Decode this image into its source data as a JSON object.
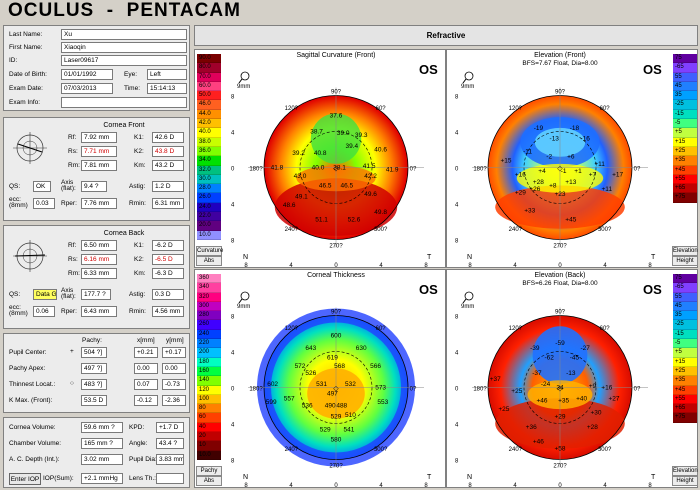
{
  "app": {
    "title": "OCULUS  -  PENTACAM",
    "section": "Refractive"
  },
  "patient": [
    {
      "label": "Last Name:",
      "value": "Xu"
    },
    {
      "label": "First Name:",
      "value": "Xiaoqin"
    },
    {
      "label": "ID:",
      "value": "Laser09617"
    }
  ],
  "dob": {
    "label": "Date of Birth:",
    "value": "01/01/1992",
    "eye_label": "Eye:",
    "eye": "Left"
  },
  "exam": {
    "label": "Exam Date:",
    "value": "07/03/2013",
    "time_label": "Time:",
    "time": "15:14:13"
  },
  "exam_info": {
    "label": "Exam Info:",
    "value": ""
  },
  "front": {
    "title": "Cornea Front",
    "rows": [
      {
        "l1": "Rf:",
        "v1": "7.92 mm",
        "l2": "K1:",
        "v2": "42.6 D"
      },
      {
        "l1": "Rs:",
        "v1": "7.71 mm",
        "l2": "K2:",
        "v2": "43.8 D"
      },
      {
        "l1": "Rm:",
        "v1": "7.81 mm",
        "l2": "Km:",
        "v2": "43.2 D"
      }
    ],
    "qs_label": "QS:",
    "qs": "OK",
    "axis_label": "Axis (flat):",
    "axis": "9.4 ?",
    "astig_label": "Astig:",
    "astig": "1.2 D",
    "ecc_label": "ecc: (8mm)",
    "ecc": "0.03",
    "rper_label": "Rper:",
    "rper": "7.76 mm",
    "rmin_label": "Rmin:",
    "rmin": "6.31 mm"
  },
  "back": {
    "title": "Cornea Back",
    "rows": [
      {
        "l1": "Rf:",
        "v1": "6.50 mm",
        "l2": "K1:",
        "v2": "-6.2 D"
      },
      {
        "l1": "Rs:",
        "v1": "6.16 mm",
        "l2": "K2:",
        "v2": "-6.5 D"
      },
      {
        "l1": "Rm:",
        "v1": "6.33 mm",
        "l2": "Km:",
        "v2": "-6.3 D"
      }
    ],
    "qs_label": "QS:",
    "qs": "Data G",
    "axis_label": "Axis (flat):",
    "axis": "177.7 ?",
    "astig_label": "Astig:",
    "astig": "0.3 D",
    "ecc_label": "ecc: (8mm)",
    "ecc": "0.06",
    "rper_label": "Rper:",
    "rper": "6.43 mm",
    "rmin_label": "Rmin:",
    "rmin": "4.56 mm"
  },
  "pachy": {
    "h_pachy": "Pachy:",
    "h_x": "x[mm]",
    "h_y": "y[mm]",
    "rows": [
      {
        "label": "Pupil Center:",
        "sym": "+",
        "pachy": "504 ?]",
        "x": "+0.21",
        "y": "+0.17"
      },
      {
        "label": "Pachy Apex:",
        "sym": "",
        "pachy": "497 ?]",
        "x": "0.00",
        "y": "0.00"
      },
      {
        "label": "Thinnest Locat.:",
        "sym": "○",
        "pachy": "483 ?]",
        "x": "0.07",
        "y": "-0.73"
      },
      {
        "label": "K Max. (Front):",
        "sym": "",
        "pachy": "53.5 D",
        "x": "-0.12",
        "y": "-2.36"
      }
    ]
  },
  "chamber": {
    "rows": [
      {
        "l1": "Cornea Volume:",
        "v1": "59.6 mm ?",
        "l2": "KPD:",
        "v2": "+1.7 D"
      },
      {
        "l1": "Chamber Volume:",
        "v1": "165 mm ?",
        "l2": "Angle:",
        "v2": "43.4 ?"
      },
      {
        "l1": "A. C. Depth (Int.):",
        "v1": "3.02 mm",
        "l2": "Pupil Dia:",
        "v2": "3.83 mm"
      }
    ],
    "enter_iop": "Enter IOP",
    "iop_label": "IOP(Sum):",
    "iop": "+2.1 mmHg",
    "lens_label": "Lens Th.:",
    "lens": ""
  },
  "maps": {
    "sagittal": {
      "title": "Sagittal Curvature (Front)",
      "eye": "OS",
      "scale_top": "Curvature",
      "scale_bot": "Abs",
      "scale": [
        "90.0",
        "80.0",
        "70.0",
        "60.0",
        "50.0",
        "46.0",
        "44.0",
        "42.0",
        "40.0",
        "38.0",
        "36.0",
        "34.0",
        "32.0",
        "30.0",
        "28.0",
        "26.0",
        "24.0",
        "22.0",
        "20.0",
        "10.0"
      ],
      "values": [
        {
          "t": "37.6",
          "x": 0,
          "y": -0.72
        },
        {
          "t": "38.7",
          "x": -0.27,
          "y": -0.5
        },
        {
          "t": "39.0",
          "x": 0.1,
          "y": -0.48
        },
        {
          "t": "39.3",
          "x": 0.35,
          "y": -0.45
        },
        {
          "t": "40.6",
          "x": 0.62,
          "y": -0.25
        },
        {
          "t": "39.2",
          "x": -0.52,
          "y": -0.2
        },
        {
          "t": "40.8",
          "x": -0.22,
          "y": -0.2
        },
        {
          "t": "39.4",
          "x": 0.22,
          "y": -0.3
        },
        {
          "t": "41.8",
          "x": -0.82,
          "y": 0.0
        },
        {
          "t": "40.0",
          "x": -0.25,
          "y": 0.0
        },
        {
          "t": "38.1",
          "x": 0.05,
          "y": 0.0
        },
        {
          "t": "41.5",
          "x": 0.46,
          "y": -0.02
        },
        {
          "t": "41.9",
          "x": 0.78,
          "y": 0.03
        },
        {
          "t": "43.0",
          "x": -0.5,
          "y": 0.12
        },
        {
          "t": "42.2",
          "x": 0.48,
          "y": 0.12
        },
        {
          "t": "46.5",
          "x": -0.15,
          "y": 0.25
        },
        {
          "t": "46.5",
          "x": 0.15,
          "y": 0.25
        },
        {
          "t": "49.1",
          "x": -0.48,
          "y": 0.4
        },
        {
          "t": "49.6",
          "x": 0.48,
          "y": 0.37
        },
        {
          "t": "48.6",
          "x": -0.65,
          "y": 0.52
        },
        {
          "t": "51.1",
          "x": -0.2,
          "y": 0.72
        },
        {
          "t": "52.6",
          "x": 0.25,
          "y": 0.72
        },
        {
          "t": "49.8",
          "x": 0.62,
          "y": 0.62
        }
      ]
    },
    "elev_front": {
      "title": "Elevation (Front)",
      "subtitle": "BFS=7.67 Float, Dia=8.00",
      "eye": "OS",
      "scale_top": "Elevation",
      "scale_bot": "Height",
      "scale": [
        "75",
        "-65",
        "55",
        "45",
        "35",
        "-25",
        "-15",
        "-5",
        "+5",
        "+15",
        "+25",
        "+35",
        "+45",
        "+55",
        "+65",
        "+75"
      ],
      "values": [
        {
          "t": "-19",
          "x": -0.3,
          "y": -0.55
        },
        {
          "t": "-18",
          "x": 0.2,
          "y": -0.55
        },
        {
          "t": "-13",
          "x": -0.08,
          "y": -0.4
        },
        {
          "t": "-16",
          "x": 0.35,
          "y": -0.4
        },
        {
          "t": "-11",
          "x": -0.45,
          "y": -0.22
        },
        {
          "t": "-2",
          "x": -0.15,
          "y": -0.15
        },
        {
          "t": "+6",
          "x": 0.15,
          "y": -0.15
        },
        {
          "t": "+15",
          "x": -0.75,
          "y": -0.1
        },
        {
          "t": "+11",
          "x": 0.55,
          "y": -0.05
        },
        {
          "t": "+16",
          "x": -0.55,
          "y": 0.1
        },
        {
          "t": "+4",
          "x": -0.25,
          "y": 0.05
        },
        {
          "t": "-1",
          "x": 0.05,
          "y": 0.05
        },
        {
          "t": "+1",
          "x": 0.25,
          "y": 0.05
        },
        {
          "t": "+7",
          "x": 0.45,
          "y": 0.1
        },
        {
          "t": "+17",
          "x": 0.8,
          "y": 0.1
        },
        {
          "t": "+28",
          "x": -0.3,
          "y": 0.2
        },
        {
          "t": "+8",
          "x": -0.1,
          "y": 0.25
        },
        {
          "t": "+13",
          "x": 0.15,
          "y": 0.2
        },
        {
          "t": "+11",
          "x": 0.65,
          "y": 0.3
        },
        {
          "t": "+29",
          "x": -0.55,
          "y": 0.35
        },
        {
          "t": "+26",
          "x": -0.35,
          "y": 0.3
        },
        {
          "t": "+23",
          "x": 0.0,
          "y": 0.37
        },
        {
          "t": "+33",
          "x": -0.42,
          "y": 0.6
        },
        {
          "t": "+45",
          "x": 0.15,
          "y": 0.72
        }
      ]
    },
    "thickness": {
      "title": "Corneal Thickness",
      "eye": "OS",
      "scale_top": "Pachy",
      "scale_bot": "Abs",
      "scale": [
        "360",
        "340",
        "320",
        "300",
        "280",
        "260",
        "240",
        "220",
        "200",
        "180",
        "160",
        "140",
        "120",
        "100",
        "80",
        "60",
        "40",
        "20",
        "10",
        "10.0"
      ],
      "values": [
        {
          "t": "600",
          "x": 0,
          "y": -0.72
        },
        {
          "t": "643",
          "x": -0.35,
          "y": -0.55
        },
        {
          "t": "630",
          "x": 0.35,
          "y": -0.55
        },
        {
          "t": "619",
          "x": -0.05,
          "y": -0.42
        },
        {
          "t": "572",
          "x": -0.5,
          "y": -0.3
        },
        {
          "t": "568",
          "x": 0.05,
          "y": -0.3
        },
        {
          "t": "566",
          "x": 0.55,
          "y": -0.3
        },
        {
          "t": "526",
          "x": -0.35,
          "y": -0.2
        },
        {
          "t": "602",
          "x": -0.88,
          "y": -0.05
        },
        {
          "t": "531",
          "x": -0.2,
          "y": -0.05
        },
        {
          "t": "532",
          "x": 0.2,
          "y": -0.05
        },
        {
          "t": "573",
          "x": 0.62,
          "y": 0.0
        },
        {
          "t": "497",
          "x": -0.05,
          "y": 0.08
        },
        {
          "t": "557",
          "x": -0.65,
          "y": 0.15
        },
        {
          "t": "536",
          "x": -0.4,
          "y": 0.25
        },
        {
          "t": "490",
          "x": -0.08,
          "y": 0.25
        },
        {
          "t": "488",
          "x": 0.08,
          "y": 0.25
        },
        {
          "t": "553",
          "x": 0.65,
          "y": 0.2
        },
        {
          "t": "599",
          "x": -0.9,
          "y": 0.2
        },
        {
          "t": "529",
          "x": 0,
          "y": 0.4
        },
        {
          "t": "510",
          "x": 0.2,
          "y": 0.38
        },
        {
          "t": "529",
          "x": -0.15,
          "y": 0.58
        },
        {
          "t": "541",
          "x": 0.18,
          "y": 0.58
        },
        {
          "t": "580",
          "x": 0,
          "y": 0.72
        }
      ]
    },
    "elev_back": {
      "title": "Elevation (Back)",
      "subtitle": "BFS=6.26 Float, Dia=8.00",
      "eye": "OS",
      "scale_top": "Elevation",
      "scale_bot": "Height",
      "scale": [
        "75",
        "-65",
        "55",
        "45",
        "35",
        "-25",
        "-15",
        "-5",
        "+5",
        "+15",
        "+25",
        "+35",
        "+45",
        "+55",
        "+65",
        "+75"
      ],
      "values": [
        {
          "t": "-59",
          "x": 0,
          "y": -0.62
        },
        {
          "t": "-39",
          "x": -0.35,
          "y": -0.55
        },
        {
          "t": "-27",
          "x": 0.35,
          "y": -0.55
        },
        {
          "t": "-62",
          "x": -0.15,
          "y": -0.42
        },
        {
          "t": "-45",
          "x": 0.2,
          "y": -0.42
        },
        {
          "t": "-37",
          "x": -0.32,
          "y": -0.2
        },
        {
          "t": "-13",
          "x": 0.15,
          "y": -0.2
        },
        {
          "t": "+37",
          "x": -0.9,
          "y": -0.12
        },
        {
          "t": "-24",
          "x": -0.2,
          "y": -0.05
        },
        {
          "t": "34",
          "x": 0.0,
          "y": 0.0
        },
        {
          "t": "+9",
          "x": 0.45,
          "y": -0.02
        },
        {
          "t": "+16",
          "x": 0.65,
          "y": 0.0
        },
        {
          "t": "+25",
          "x": -0.6,
          "y": 0.05
        },
        {
          "t": "+46",
          "x": -0.25,
          "y": 0.18
        },
        {
          "t": "+35",
          "x": 0.05,
          "y": 0.18
        },
        {
          "t": "+40",
          "x": 0.3,
          "y": 0.15
        },
        {
          "t": "+27",
          "x": 0.75,
          "y": 0.15
        },
        {
          "t": "+25",
          "x": -0.78,
          "y": 0.3
        },
        {
          "t": "+29",
          "x": 0.0,
          "y": 0.4
        },
        {
          "t": "+30",
          "x": 0.5,
          "y": 0.35
        },
        {
          "t": "+36",
          "x": -0.4,
          "y": 0.55
        },
        {
          "t": "+28",
          "x": 0.45,
          "y": 0.55
        },
        {
          "t": "+46",
          "x": -0.3,
          "y": 0.75
        },
        {
          "t": "+58",
          "x": 0.0,
          "y": 0.85
        }
      ]
    }
  },
  "axis": {
    "top": "90?",
    "bottom": "270?",
    "l1": "180?",
    "r1": "0?",
    "ul": "120?",
    "ur": "60?",
    "dl": "240?",
    "dr": "300?",
    "N": "N",
    "T": "T",
    "ticks": [
      "8",
      "4",
      "0",
      "4",
      "8"
    ],
    "vticks": [
      "8",
      "4",
      "0",
      "4",
      "8"
    ],
    "mm": "9mm"
  },
  "colors": {
    "curv": [
      "#7a0000",
      "#a0002a",
      "#e0005a",
      "#ff4080",
      "#ff2020",
      "#ff6020",
      "#ff9000",
      "#ffc000",
      "#ffff00",
      "#c8ff00",
      "#80ff00",
      "#00e000",
      "#00c080",
      "#00c0c0",
      "#0080ff",
      "#0040ff",
      "#2000c0",
      "#4000a0",
      "#600080",
      "#9090ff"
    ],
    "elev": [
      "#6000a0",
      "#8040ff",
      "#4060ff",
      "#2080ff",
      "#00a0ff",
      "#00c0e0",
      "#00e0c0",
      "#40ff80",
      "#c0ff40",
      "#ffff00",
      "#ffc000",
      "#ff8000",
      "#ff4000",
      "#ff0000",
      "#c00000",
      "#800000"
    ],
    "pachy": [
      "#ff80c0",
      "#ff40a0",
      "#ff0080",
      "#c000c0",
      "#8000c0",
      "#4000ff",
      "#0040ff",
      "#0080ff",
      "#00c0ff",
      "#00ffc0",
      "#00ff40",
      "#80ff00",
      "#ffff00",
      "#ffc000",
      "#ff8000",
      "#ff4000",
      "#ff0000",
      "#c00000",
      "#800000",
      "#400000"
    ]
  }
}
